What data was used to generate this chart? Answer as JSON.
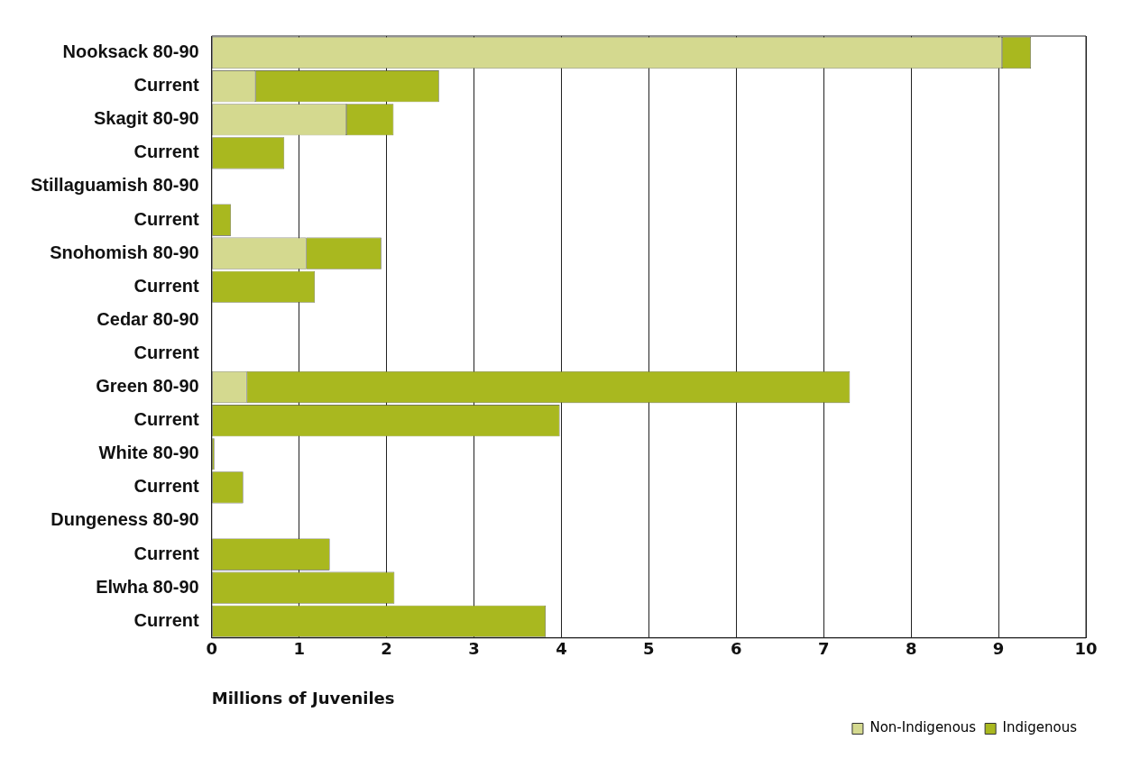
{
  "chart_data": {
    "type": "bar",
    "orientation": "horizontal",
    "stacked": true,
    "categories": [
      "Nooksack 80-90",
      "Current",
      "Skagit 80-90",
      "Current",
      "Stillaguamish 80-90",
      "Current",
      "Snohomish 80-90",
      "Current",
      "Cedar 80-90",
      "Current",
      "Green 80-90",
      "Current",
      "White 80-90",
      "Current",
      "Dungeness 80-90",
      "Current",
      "Elwha 80-90",
      "Current"
    ],
    "series": [
      {
        "name": "Non-Indigenous",
        "color": "#d4d98f",
        "values": [
          9.04,
          0.5,
          1.54,
          null,
          null,
          null,
          1.08,
          null,
          null,
          null,
          0.4,
          null,
          null,
          null,
          null,
          null,
          null,
          null
        ]
      },
      {
        "name": "Indigenous",
        "color": "#a9b81f",
        "values": [
          0.33,
          2.1,
          0.54,
          0.83,
          null,
          0.22,
          0.86,
          1.18,
          null,
          null,
          6.9,
          3.98,
          0.03,
          0.36,
          null,
          1.35,
          2.09,
          3.82
        ]
      }
    ],
    "xlabel": "Millions of Juveniles",
    "xlim": [
      0,
      10
    ],
    "xticks": [
      0,
      1,
      2,
      3,
      4,
      5,
      6,
      7,
      8,
      9,
      10
    ],
    "grid": "x",
    "legend": "bottom right"
  }
}
